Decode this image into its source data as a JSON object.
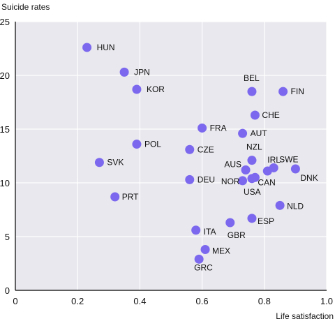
{
  "chart_data": {
    "type": "scatter",
    "title": "",
    "xlabel": "Life satisfaction",
    "ylabel": "Suicide rates",
    "xlim": [
      0,
      1.0
    ],
    "ylim": [
      0,
      25
    ],
    "x_ticks": [
      "0",
      "0.2",
      "0.4",
      "0.6",
      "0.8",
      "1.0"
    ],
    "y_ticks": [
      "0",
      "5",
      "10",
      "15",
      "20",
      "25"
    ],
    "grid": true,
    "marker_color": "#7b68ee",
    "points": [
      {
        "label": "HUN",
        "x": 0.23,
        "y": 22.6
      },
      {
        "label": "JPN",
        "x": 0.35,
        "y": 20.3
      },
      {
        "label": "KOR",
        "x": 0.39,
        "y": 18.7
      },
      {
        "label": "BEL",
        "x": 0.76,
        "y": 18.5
      },
      {
        "label": "FIN",
        "x": 0.86,
        "y": 18.5
      },
      {
        "label": "CHE",
        "x": 0.77,
        "y": 16.3
      },
      {
        "label": "FRA",
        "x": 0.6,
        "y": 15.1
      },
      {
        "label": "AUT",
        "x": 0.73,
        "y": 14.6
      },
      {
        "label": "POL",
        "x": 0.39,
        "y": 13.6
      },
      {
        "label": "CZE",
        "x": 0.56,
        "y": 13.1
      },
      {
        "label": "NZL",
        "x": 0.76,
        "y": 12.1
      },
      {
        "label": "SVK",
        "x": 0.27,
        "y": 11.9
      },
      {
        "label": "AUS",
        "x": 0.74,
        "y": 11.2
      },
      {
        "label": "IRL",
        "x": 0.81,
        "y": 11.1
      },
      {
        "label": "SWE",
        "x": 0.83,
        "y": 11.4
      },
      {
        "label": "DNK",
        "x": 0.9,
        "y": 11.3
      },
      {
        "label": "DEU",
        "x": 0.56,
        "y": 10.3
      },
      {
        "label": "NOR",
        "x": 0.73,
        "y": 10.2
      },
      {
        "label": "CAN",
        "x": 0.77,
        "y": 10.5
      },
      {
        "label": "USA",
        "x": 0.76,
        "y": 10.4
      },
      {
        "label": "PRT",
        "x": 0.32,
        "y": 8.7
      },
      {
        "label": "NLD",
        "x": 0.85,
        "y": 7.9
      },
      {
        "label": "ESP",
        "x": 0.76,
        "y": 6.7
      },
      {
        "label": "GBR",
        "x": 0.69,
        "y": 6.3
      },
      {
        "label": "ITA",
        "x": 0.58,
        "y": 5.6
      },
      {
        "label": "MEX",
        "x": 0.61,
        "y": 3.8
      },
      {
        "label": "GRC",
        "x": 0.59,
        "y": 2.9
      }
    ]
  }
}
